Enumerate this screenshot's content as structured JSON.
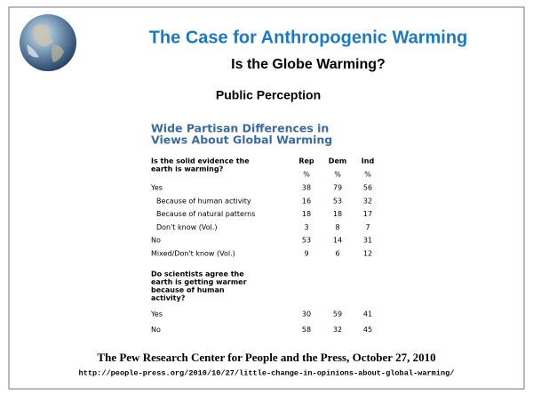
{
  "slide": {
    "title": "The Case for Anthropogenic Warming",
    "subtitle": "Is the Globe Warming?",
    "heading": "Public Perception"
  },
  "table": {
    "title": [
      "Wide Partisan Differences in",
      "Views About Global Warming"
    ],
    "columns": [
      "Rep",
      "Dem",
      "Ind"
    ],
    "units": [
      "%",
      "%",
      "%"
    ],
    "sections": [
      {
        "question": [
          "Is the solid evidence the",
          "earth is warming?"
        ],
        "rows": [
          {
            "label": "Yes",
            "values": [
              38,
              79,
              56
            ],
            "breakdown": [
              {
                "label": "Because of human activity",
                "values": [
                  16,
                  53,
                  32
                ]
              },
              {
                "label": "Because of natural patterns",
                "values": [
                  18,
                  18,
                  17
                ]
              },
              {
                "label": "Don't know (Vol.)",
                "values": [
                  3,
                  8,
                  7
                ]
              }
            ]
          },
          {
            "label": "No",
            "values": [
              53,
              14,
              31
            ]
          },
          {
            "label": "Mixed/Don't know (Vol.)",
            "values": [
              9,
              6,
              12
            ]
          }
        ]
      },
      {
        "question": [
          "Do scientists agree the",
          "earth is getting warmer",
          "because of human",
          "activity?"
        ],
        "rows": [
          {
            "label": "Yes",
            "values": [
              30,
              59,
              41
            ]
          },
          {
            "label": "No",
            "values": [
              58,
              32,
              45
            ]
          }
        ]
      }
    ]
  },
  "source": {
    "text": "The Pew Research Center for People and the Press, October 27, 2010",
    "url": "http://people-press.org/2010/10/27/little-change-in-opinions-about-global-warming/"
  }
}
